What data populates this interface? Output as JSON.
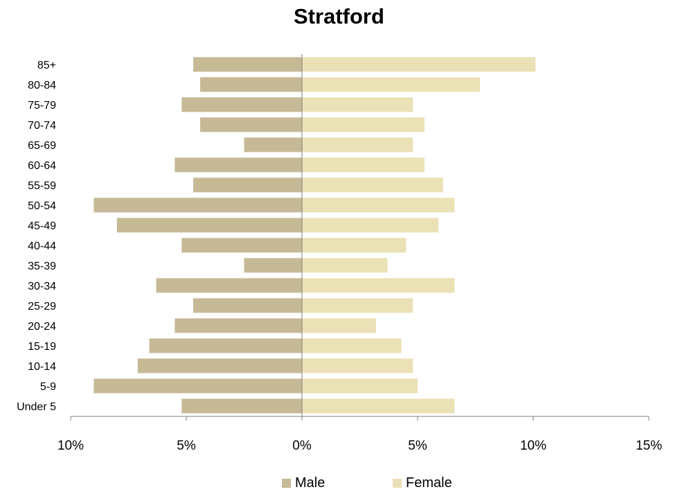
{
  "chart_data": {
    "type": "bar",
    "orientation": "horizontal",
    "title": "Stratford",
    "categories": [
      "85+",
      "80-84",
      "75-79",
      "70-74",
      "65-69",
      "60-64",
      "55-59",
      "50-54",
      "45-49",
      "40-44",
      "35-39",
      "30-34",
      "25-29",
      "20-24",
      "15-19",
      "10-14",
      "5-9",
      "Under 5"
    ],
    "series": [
      {
        "name": "Male",
        "color": "#c6b996",
        "values": [
          4.7,
          4.4,
          5.2,
          4.4,
          2.5,
          5.5,
          4.7,
          9.0,
          8.0,
          5.2,
          2.5,
          6.3,
          4.7,
          5.5,
          6.6,
          7.1,
          9.0,
          5.2
        ]
      },
      {
        "name": "Female",
        "color": "#ebe1b6",
        "values": [
          10.1,
          7.7,
          4.8,
          5.3,
          4.8,
          5.3,
          6.1,
          6.6,
          5.9,
          4.5,
          3.7,
          6.6,
          4.8,
          3.2,
          4.3,
          4.8,
          5.0,
          6.6
        ]
      }
    ],
    "xlim": [
      -10,
      15
    ],
    "xticks": [
      {
        "value": -10,
        "label": "10%"
      },
      {
        "value": -5,
        "label": "5%"
      },
      {
        "value": 0,
        "label": "0%"
      },
      {
        "value": 5,
        "label": "5%"
      },
      {
        "value": 10,
        "label": "10%"
      },
      {
        "value": 15,
        "label": "15%"
      }
    ],
    "grid": false,
    "legend_position": "bottom"
  }
}
